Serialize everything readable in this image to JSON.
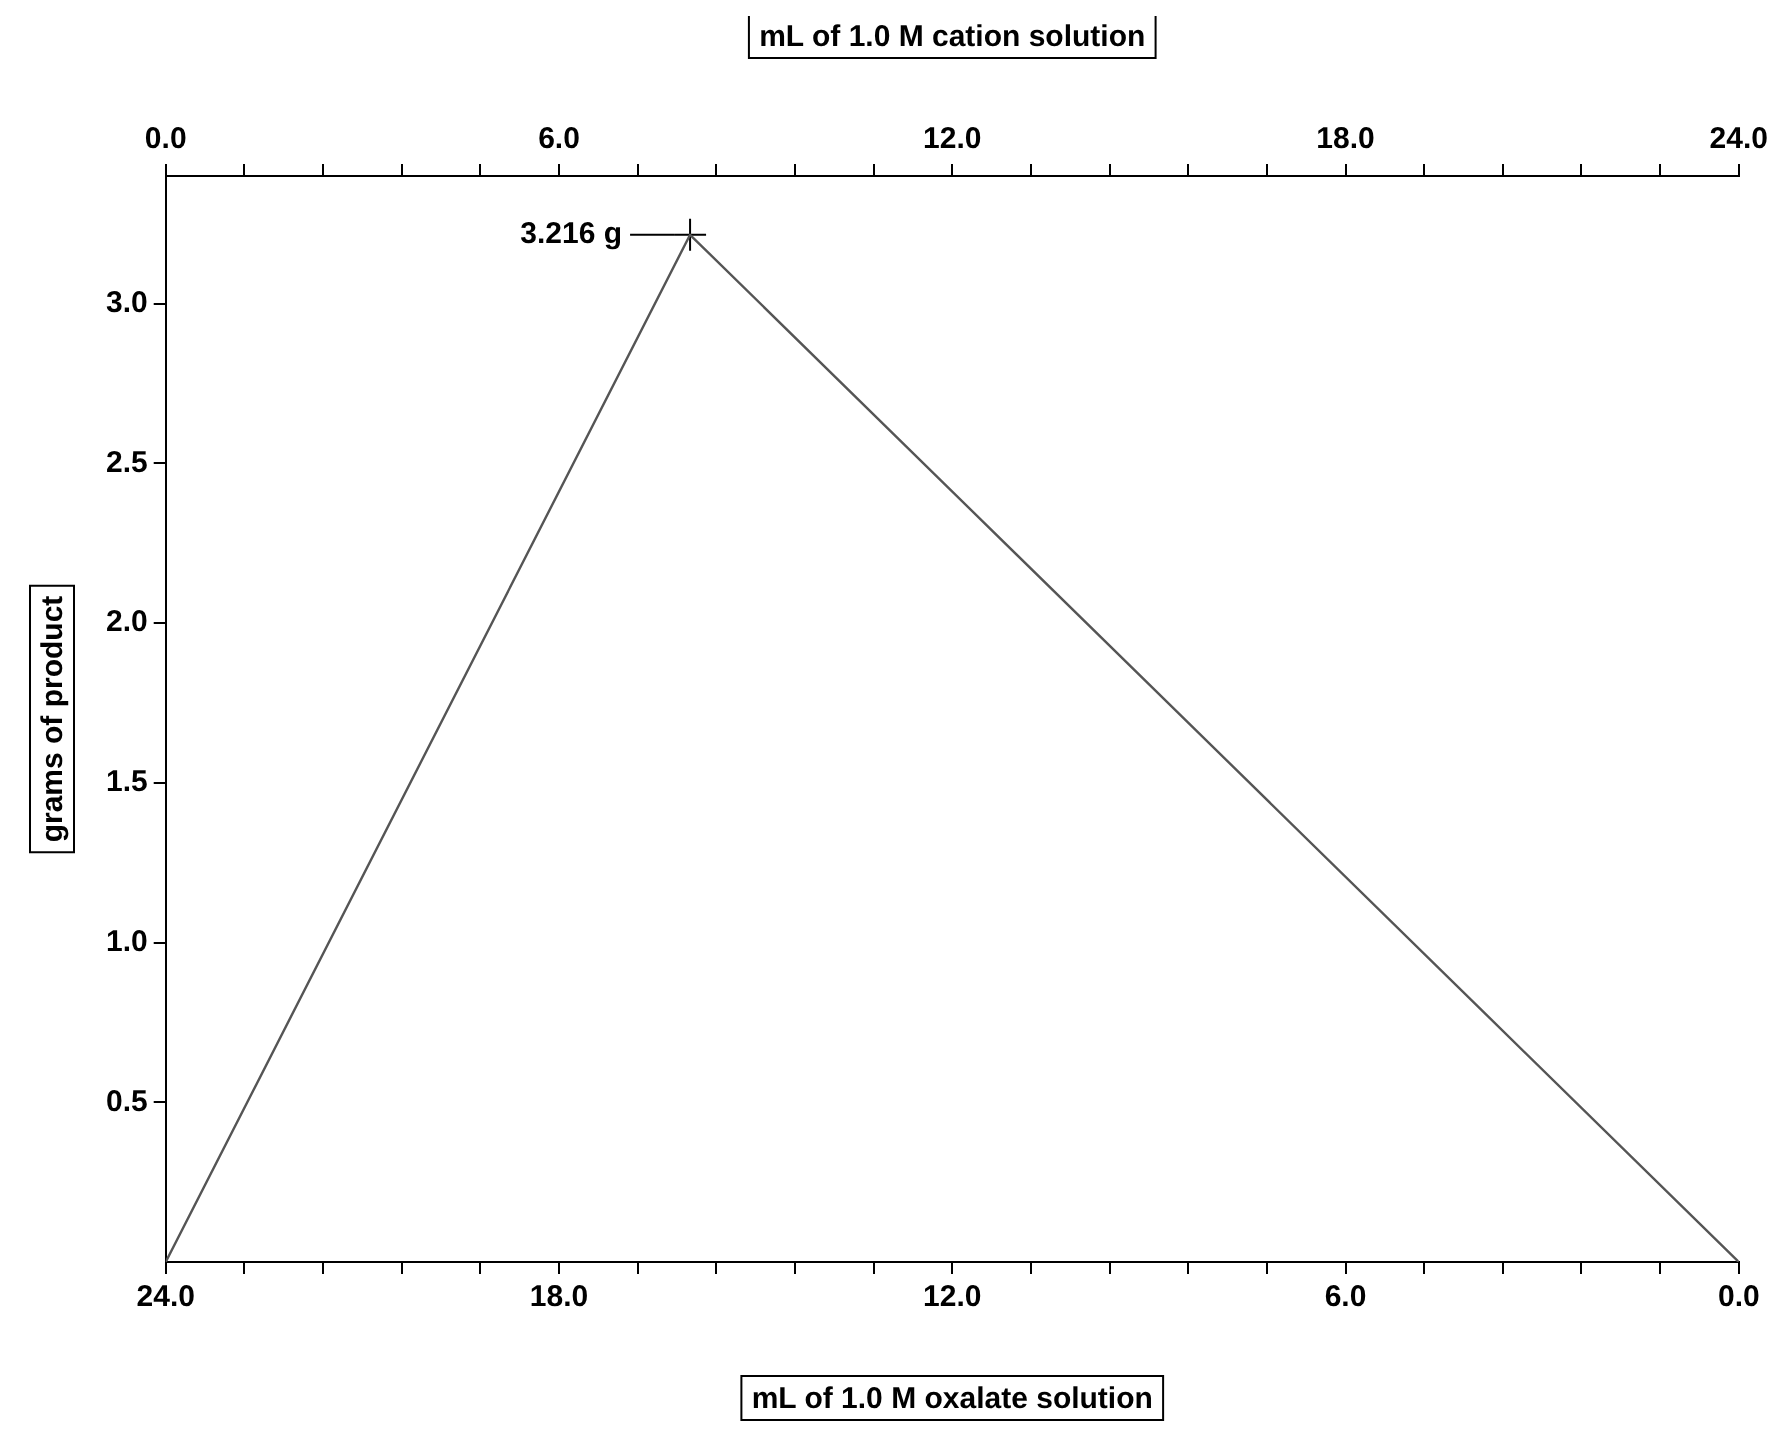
{
  "chart_data": {
    "type": "line",
    "xlabel": "mL of 1.0 M oxalate solution",
    "x2label": "mL of 1.0 M cation solution",
    "ylabel": "grams of product",
    "x": [
      24,
      16,
      0
    ],
    "series": [
      {
        "color": "#555555",
        "values": [
          0,
          3.216,
          0
        ]
      },
      {
        "type": "scatter",
        "x": [
          16
        ],
        "color": "#000000",
        "values": [
          3.216
        ],
        "marker": "cross"
      }
    ],
    "xlim": [
      24,
      0
    ],
    "xticks": [
      {
        "value": 24,
        "label": "24.0"
      },
      {
        "value": 22.8,
        "label": null
      },
      {
        "value": 21.6,
        "label": null
      },
      {
        "value": 20.4,
        "label": null
      },
      {
        "value": 19.2,
        "label": null
      },
      {
        "value": 18,
        "label": "18.0"
      },
      {
        "value": 16.8,
        "label": null
      },
      {
        "value": 15.6,
        "label": null
      },
      {
        "value": 14.4,
        "label": null
      },
      {
        "value": 13.2,
        "label": null
      },
      {
        "value": 12,
        "label": "12.0"
      },
      {
        "value": 10.8,
        "label": null
      },
      {
        "value": 9.6,
        "label": null
      },
      {
        "value": 8.4,
        "label": null
      },
      {
        "value": 7.2,
        "label": null
      },
      {
        "value": 6,
        "label": "6.0"
      },
      {
        "value": 4.8,
        "label": null
      },
      {
        "value": 3.6,
        "label": null
      },
      {
        "value": 2.4,
        "label": null
      },
      {
        "value": 1.2,
        "label": null
      },
      {
        "value": 0,
        "label": "0.0"
      }
    ],
    "x2lim": [
      0,
      24
    ],
    "x2ticks": [
      {
        "value": 0,
        "label": "0.0"
      },
      {
        "value": 1.2,
        "label": null
      },
      {
        "value": 2.4,
        "label": null
      },
      {
        "value": 3.6,
        "label": null
      },
      {
        "value": 4.8,
        "label": null
      },
      {
        "value": 6,
        "label": "6.0"
      },
      {
        "value": 7.2,
        "label": null
      },
      {
        "value": 8.4,
        "label": null
      },
      {
        "value": 9.6,
        "label": null
      },
      {
        "value": 10.8,
        "label": null
      },
      {
        "value": 12,
        "label": "12.0"
      },
      {
        "value": 13.2,
        "label": null
      },
      {
        "value": 14.4,
        "label": null
      },
      {
        "value": 15.6,
        "label": null
      },
      {
        "value": 16.8,
        "label": null
      },
      {
        "value": 18,
        "label": "18.0"
      },
      {
        "value": 19.2,
        "label": null
      },
      {
        "value": 20.4,
        "label": null
      },
      {
        "value": 21.6,
        "label": null
      },
      {
        "value": 22.8,
        "label": null
      },
      {
        "value": 24,
        "label": "24.0"
      }
    ],
    "ylim": [
      0,
      3.4
    ],
    "yticks": [
      {
        "value": 0.5,
        "label": "0.5"
      },
      {
        "value": 1,
        "label": "1.0"
      },
      {
        "value": 1.5,
        "label": "1.5"
      },
      {
        "value": 2,
        "label": "2.0"
      },
      {
        "value": 2.5,
        "label": "2.5"
      },
      {
        "value": 3,
        "label": "3.0"
      }
    ],
    "annotations": [
      {
        "text": "3.216 g",
        "x": 16,
        "y": 3.216
      }
    ],
    "grid": false,
    "legend": false
  }
}
